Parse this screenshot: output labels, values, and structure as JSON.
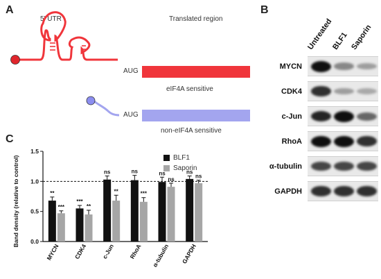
{
  "panelA": {
    "letter": "A",
    "utr_label": "5' UTR",
    "translated_label": "Translated region",
    "aug1": "AUG",
    "aug2": "AUG",
    "sensitive_label": "eIF4A sensitive",
    "nonsensitive_label": "non-eIF4A sensitive",
    "colors": {
      "sensitive": "#f0353b",
      "nonsensitive": "#a3a5ef",
      "cap_red": "#e0262c",
      "cap_blue": "#8c8ef0"
    }
  },
  "panelB": {
    "letter": "B",
    "lanes": [
      "Untreated",
      "BLF1",
      "Saporin"
    ],
    "rows": [
      "MYCN",
      "CDK4",
      "c-Jun",
      "RhoA",
      "α-tubulin",
      "GAPDH"
    ],
    "band_intensity": [
      [
        1.0,
        0.45,
        0.35
      ],
      [
        0.85,
        0.35,
        0.3
      ],
      [
        0.9,
        1.0,
        0.6
      ],
      [
        1.0,
        1.0,
        0.85
      ],
      [
        0.75,
        0.75,
        0.75
      ],
      [
        0.85,
        0.85,
        0.85
      ]
    ]
  },
  "panelC": {
    "letter": "C",
    "ylabel": "Band density (relative to control)",
    "legend": [
      "BLF1",
      "Saporin"
    ],
    "colors": {
      "BLF1": "#111111",
      "Saporin": "#a6a6a6"
    },
    "chart_data": {
      "type": "bar",
      "categories": [
        "MYCN",
        "CDK4",
        "c-Jun",
        "RhoA",
        "α-tubulin",
        "GAPDH"
      ],
      "series": [
        {
          "name": "BLF1",
          "values": [
            0.68,
            0.55,
            1.03,
            1.02,
            0.99,
            1.04
          ],
          "errors": [
            0.06,
            0.05,
            0.06,
            0.08,
            0.08,
            0.05
          ],
          "annotations": [
            "**",
            "***",
            "ns",
            "ns",
            "ns",
            "ns"
          ]
        },
        {
          "name": "Saporin",
          "values": [
            0.47,
            0.45,
            0.68,
            0.66,
            0.91,
            0.97
          ],
          "errors": [
            0.04,
            0.07,
            0.09,
            0.07,
            0.06,
            0.05
          ],
          "annotations": [
            "***",
            "**",
            "**",
            "***",
            "ns",
            "ns"
          ]
        }
      ],
      "ylim": [
        0,
        1.5
      ],
      "yticks": [
        "0.0",
        "0.5",
        "1.0",
        "1.5"
      ],
      "reference_line": 1.0
    }
  }
}
